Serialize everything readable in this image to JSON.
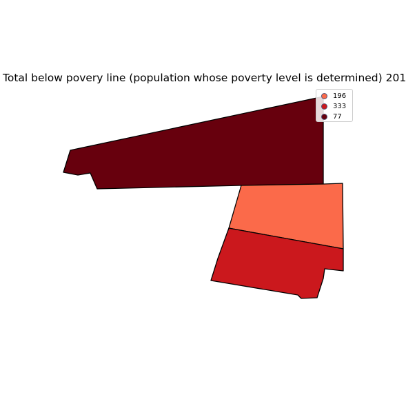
{
  "chart_data": {
    "type": "choropleth",
    "title": "Total below povery line (population whose poverty level is determined) 201",
    "regions": [
      {
        "value": 77,
        "color": "#67000d"
      },
      {
        "value": 196,
        "color": "#fb6a4a"
      },
      {
        "value": 333,
        "color": "#cb181d"
      }
    ],
    "legend": {
      "placement": "top-right",
      "entries": [
        {
          "label": "196",
          "color": "#fb6a4a"
        },
        {
          "label": "333",
          "color": "#cb181d"
        },
        {
          "label": "77",
          "color": "#67000d"
        }
      ]
    },
    "outline_color": "#000000"
  }
}
